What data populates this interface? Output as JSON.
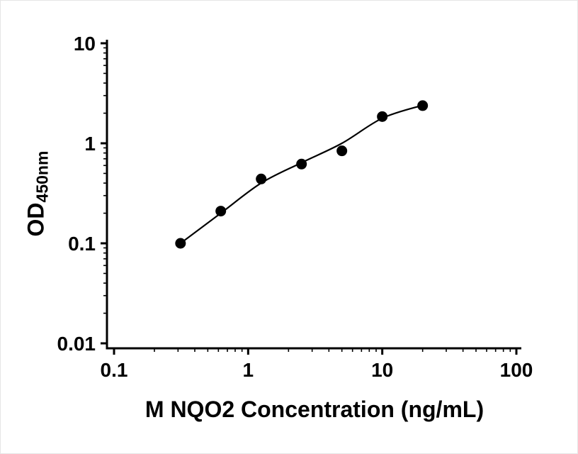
{
  "figure": {
    "background_color": "#ffffff",
    "axis_color": "#000000"
  },
  "chart_data": {
    "type": "scatter",
    "title": "",
    "xlabel": "M NQO2 Concentration (ng/mL)",
    "ylabel_main": "OD",
    "ylabel_sub": "450nm",
    "x_scale": "log",
    "y_scale": "log",
    "xlim": [
      0.1,
      100
    ],
    "ylim": [
      0.01,
      10
    ],
    "x_ticks": [
      0.1,
      1,
      10,
      100
    ],
    "x_tick_labels": [
      "0.1",
      "1",
      "10",
      "100"
    ],
    "y_ticks": [
      0.01,
      0.1,
      1,
      10
    ],
    "y_tick_labels": [
      "0.01",
      "0.1",
      "1",
      "10"
    ],
    "grid": false,
    "legend": null,
    "marker_color": "#000000",
    "line_color": "#000000",
    "x": [
      0.313,
      0.625,
      1.25,
      2.5,
      5,
      10,
      20
    ],
    "y": [
      0.1,
      0.21,
      0.44,
      0.62,
      0.84,
      1.85,
      2.38
    ],
    "fit_curve": {
      "x": [
        0.313,
        0.625,
        1.25,
        2.5,
        5,
        10,
        20
      ],
      "y": [
        0.1,
        0.2,
        0.4,
        0.64,
        1.0,
        1.78,
        2.4
      ]
    }
  }
}
